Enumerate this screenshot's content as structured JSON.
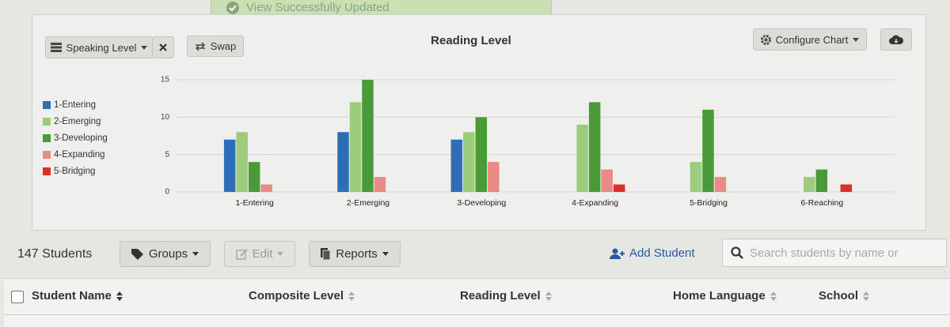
{
  "toast": "View Successfully Updated",
  "toolbar": {
    "group_by": "Speaking Level",
    "swap": "Swap",
    "configure": "Configure Chart"
  },
  "chart_data": {
    "type": "bar",
    "title": "Reading Level",
    "categories": [
      "1-Entering",
      "2-Emerging",
      "3-Developing",
      "4-Expanding",
      "5-Bridging",
      "6-Reaching"
    ],
    "series": [
      {
        "name": "1-Entering",
        "color": "#2f6db5",
        "values": [
          7,
          8,
          7,
          0,
          0,
          0
        ]
      },
      {
        "name": "2-Emerging",
        "color": "#9ccc7c",
        "values": [
          8,
          12,
          8,
          9,
          4,
          2
        ]
      },
      {
        "name": "3-Developing",
        "color": "#4a9a3a",
        "values": [
          4,
          15,
          10,
          12,
          11,
          3
        ]
      },
      {
        "name": "4-Expanding",
        "color": "#e88a86",
        "values": [
          1,
          2,
          4,
          3,
          2,
          0
        ]
      },
      {
        "name": "5-Bridging",
        "color": "#d9302c",
        "values": [
          0,
          0,
          0,
          1,
          0,
          1
        ]
      }
    ],
    "ylim": [
      0,
      15
    ],
    "yticks": [
      0,
      5,
      10,
      15
    ],
    "grid": true,
    "legend": "left"
  },
  "list": {
    "count": "147 Students",
    "groups": "Groups",
    "edit": "Edit",
    "reports": "Reports",
    "add_student": "Add Student",
    "search_placeholder": "Search students by name or"
  },
  "table": {
    "columns": [
      "Student Name",
      "Composite Level",
      "Reading Level",
      "Home Language",
      "School"
    ]
  }
}
